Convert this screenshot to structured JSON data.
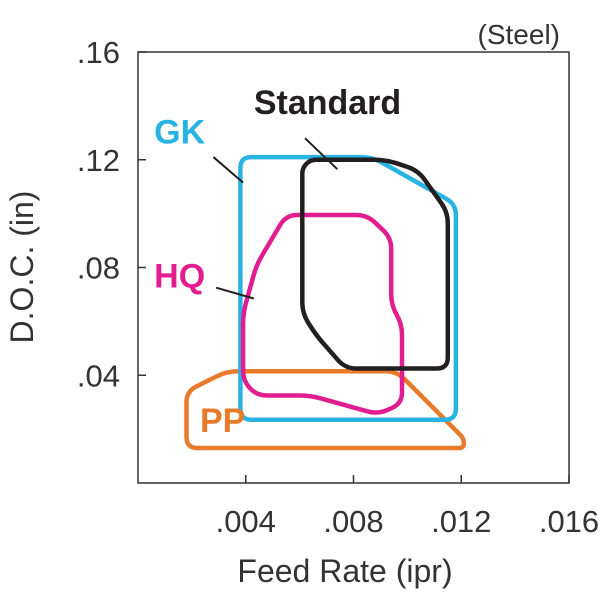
{
  "chart_data": {
    "type": "area",
    "note": "(Steel)",
    "xlabel": "Feed Rate (ipr)",
    "ylabel": "D.O.C. (in)",
    "xlim": [
      0,
      0.016
    ],
    "ylim": [
      0,
      0.16
    ],
    "grid": false,
    "x_ticks": [
      {
        "value": 0.004,
        "label": ".004"
      },
      {
        "value": 0.008,
        "label": ".008"
      },
      {
        "value": 0.012,
        "label": ".012"
      },
      {
        "value": 0.016,
        "label": ".016"
      }
    ],
    "y_ticks": [
      {
        "value": 0.04,
        "label": ".04"
      },
      {
        "value": 0.08,
        "label": ".08"
      },
      {
        "value": 0.12,
        "label": ".12"
      },
      {
        "value": 0.16,
        "label": ".16"
      }
    ],
    "series": [
      {
        "name": "PP",
        "color": "#e87a2c",
        "region": [
          [
            0.0033,
            0.0415
          ],
          [
            0.0096,
            0.0415
          ],
          [
            0.0121,
            0.0165
          ],
          [
            0.0121,
            0.013
          ],
          [
            0.0018,
            0.013
          ],
          [
            0.0018,
            0.034
          ]
        ],
        "label_at": [
          0.0023,
          0.019
        ],
        "leader": null
      },
      {
        "name": "GK",
        "color": "#29b3e3",
        "region": [
          [
            0.0038,
            0.121
          ],
          [
            0.0087,
            0.121
          ],
          [
            0.0118,
            0.1035
          ],
          [
            0.0118,
            0.0235
          ],
          [
            0.0038,
            0.0235
          ]
        ],
        "label_at": [
          0.0006,
          0.126
        ],
        "leader": [
          [
            0.0028,
            0.121
          ],
          [
            0.0039,
            0.1115
          ]
        ]
      },
      {
        "name": "HQ",
        "color": "#e01e8f",
        "region": [
          [
            0.0055,
            0.0995
          ],
          [
            0.0085,
            0.0995
          ],
          [
            0.0094,
            0.091
          ],
          [
            0.0094,
            0.066
          ],
          [
            0.0098,
            0.059
          ],
          [
            0.0098,
            0.0295
          ],
          [
            0.0089,
            0.0255
          ],
          [
            0.0064,
            0.0325
          ],
          [
            0.0044,
            0.0325
          ],
          [
            0.0039,
            0.038
          ],
          [
            0.0039,
            0.063
          ],
          [
            0.0044,
            0.081
          ]
        ],
        "label_at": [
          0.0006,
          0.0725
        ],
        "leader": [
          [
            0.0029,
            0.0725
          ],
          [
            0.0043,
            0.0685
          ]
        ]
      },
      {
        "name": "Standard",
        "color": "#231f20",
        "region": [
          [
            0.0064,
            0.12
          ],
          [
            0.0092,
            0.12
          ],
          [
            0.0104,
            0.116
          ],
          [
            0.0115,
            0.1005
          ],
          [
            0.0115,
            0.0425
          ],
          [
            0.0077,
            0.0425
          ],
          [
            0.0066,
            0.055
          ],
          [
            0.0061,
            0.063
          ],
          [
            0.0061,
            0.117
          ]
        ],
        "label_at": [
          0.0043,
          0.137
        ],
        "leader": [
          [
            0.0062,
            0.128
          ],
          [
            0.0074,
            0.1165
          ]
        ]
      }
    ]
  }
}
